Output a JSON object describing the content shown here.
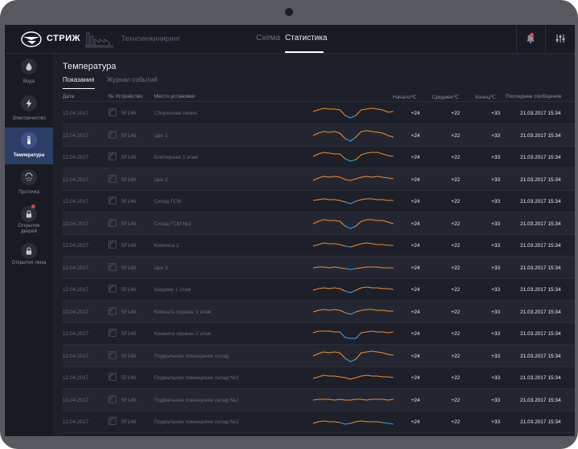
{
  "header": {
    "brand": "СТРИЖ",
    "partner": "Техноинжиниринг",
    "tabs": [
      {
        "label": "Схема",
        "active": false
      },
      {
        "label": "Статистика",
        "active": true
      }
    ]
  },
  "sidebar": {
    "items": [
      {
        "label": "Вода",
        "icon": "water-drop-icon",
        "active": false,
        "alert": false
      },
      {
        "label": "Электричество",
        "icon": "lightning-icon",
        "active": false,
        "alert": false
      },
      {
        "label": "Температура",
        "icon": "thermometer-icon",
        "active": true,
        "alert": false
      },
      {
        "label": "Протечка",
        "icon": "leak-icon",
        "active": false,
        "alert": false
      },
      {
        "label": "Открытие дверей",
        "icon": "lock-icon",
        "active": false,
        "alert": true
      },
      {
        "label": "Открытие люка",
        "icon": "lock-icon",
        "active": false,
        "alert": false
      }
    ]
  },
  "page": {
    "title": "Температура",
    "subtabs": [
      {
        "label": "Показания",
        "active": true
      },
      {
        "label": "Журнал событий",
        "active": false
      }
    ]
  },
  "table": {
    "columns": {
      "date": "Дата",
      "device": "№ Устройство",
      "location": "Место установки",
      "start": "Начало℃",
      "avg": "Среднее℃",
      "end": "Конец℃",
      "last": "Последнее сообщение"
    },
    "rows": [
      {
        "date": "12.04.2017",
        "device": "5F146",
        "location": "Сборочная линия",
        "start": "+24",
        "avg": "+22",
        "end": "+33",
        "last": "21.03.2017 15:34"
      },
      {
        "date": "12.04.2017",
        "device": "5F146",
        "location": "Цех 1",
        "start": "+24",
        "avg": "+22",
        "end": "+33",
        "last": "21.03.2017 15:34"
      },
      {
        "date": "12.04.2017",
        "device": "5F146",
        "location": "Бойлерная 1 этаж",
        "start": "+24",
        "avg": "+22",
        "end": "+33",
        "last": "21.03.2017 15:34"
      },
      {
        "date": "12.04.2017",
        "device": "5F146",
        "location": "Цех 2",
        "start": "+24",
        "avg": "+22",
        "end": "+33",
        "last": "21.03.2017 15:34"
      },
      {
        "date": "12.04.2017",
        "device": "5F146",
        "location": "Склад ГСМ",
        "start": "+24",
        "avg": "+22",
        "end": "+33",
        "last": "21.03.2017 15:34"
      },
      {
        "date": "12.04.2017",
        "device": "5F146",
        "location": "Склад ГСМ №2",
        "start": "+24",
        "avg": "+22",
        "end": "+33",
        "last": "21.03.2017 15:34"
      },
      {
        "date": "12.04.2017",
        "device": "5F146",
        "location": "Комната 1",
        "start": "+24",
        "avg": "+22",
        "end": "+33",
        "last": "21.03.2017 15:34"
      },
      {
        "date": "12.04.2017",
        "device": "5F146",
        "location": "Цех 3",
        "start": "+24",
        "avg": "+22",
        "end": "+33",
        "last": "21.03.2017 15:34"
      },
      {
        "date": "12.04.2017",
        "device": "5F146",
        "location": "Шаурма 1 этаж",
        "start": "+24",
        "avg": "+22",
        "end": "+33",
        "last": "21.03.2017 15:34"
      },
      {
        "date": "12.04.2017",
        "device": "5F146",
        "location": "Комната охраны 1 этаж",
        "start": "+24",
        "avg": "+22",
        "end": "+33",
        "last": "21.03.2017 15:34"
      },
      {
        "date": "12.04.2017",
        "device": "5F146",
        "location": "Комната охраны 2 этаж",
        "start": "+24",
        "avg": "+22",
        "end": "+33",
        "last": "21.03.2017 15:34"
      },
      {
        "date": "12.04.2017",
        "device": "5F146",
        "location": "Подвальное помещение склад",
        "start": "+24",
        "avg": "+22",
        "end": "+33",
        "last": "21.03.2017 15:34"
      },
      {
        "date": "12.04.2017",
        "device": "5F146",
        "location": "Подвальное помещение склад №2",
        "start": "+24",
        "avg": "+22",
        "end": "+33",
        "last": "21.03.2017 15:34"
      },
      {
        "date": "12.04.2017",
        "device": "5F146",
        "location": "Подвальное помещение склад №2",
        "start": "+24",
        "avg": "+22",
        "end": "+33",
        "last": "21.03.2017 15:34"
      },
      {
        "date": "12.04.2017",
        "device": "5F146",
        "location": "Подвальное помещение склад №2",
        "start": "+24",
        "avg": "+22",
        "end": "+33",
        "last": "21.03.2017 15:34"
      }
    ]
  },
  "colors": {
    "background": "#1e2029",
    "active_nav": "#2c3e66",
    "sparkline_warm": "#f08a2c",
    "sparkline_cold": "#3aa0e0",
    "alert": "#e0404a"
  }
}
